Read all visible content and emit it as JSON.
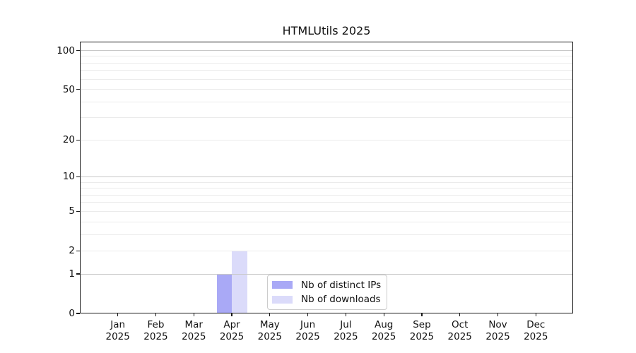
{
  "chart_data": {
    "type": "bar",
    "title": "HTMLUtils 2025",
    "categories": [
      "Jan",
      "Feb",
      "Mar",
      "Apr",
      "May",
      "Jun",
      "Jul",
      "Aug",
      "Sep",
      "Oct",
      "Nov",
      "Dec"
    ],
    "year": "2025",
    "series": [
      {
        "name": "Nb of distinct IPs",
        "color": "#a9a9f6",
        "values": [
          0,
          0,
          0,
          1,
          0,
          0,
          0,
          0,
          0,
          0,
          0,
          0
        ]
      },
      {
        "name": "Nb of downloads",
        "color": "#dbdbfa",
        "values": [
          0,
          0,
          0,
          2,
          0,
          0,
          0,
          0,
          0,
          0,
          0,
          0
        ]
      }
    ],
    "yscale": "log1p",
    "yticks": [
      0,
      1,
      2,
      5,
      10,
      20,
      50,
      100
    ],
    "gridlines": {
      "major": [
        1,
        10,
        100
      ],
      "minor": [
        2,
        3,
        4,
        5,
        6,
        7,
        8,
        9,
        20,
        30,
        40,
        50,
        60,
        70,
        80,
        90
      ]
    },
    "ylim": [
      0,
      117
    ],
    "xlim": [
      -1,
      12
    ],
    "bar_width_units": 0.4,
    "grid_on": true,
    "legend": {
      "position": "lower-center"
    },
    "colors": {
      "grid_major": "#c8c8c8",
      "grid_minor": "#ebebeb",
      "spine": "#1a1a1a",
      "text": "#111111",
      "legend_border": "#cccccc",
      "background": "#ffffff"
    }
  }
}
